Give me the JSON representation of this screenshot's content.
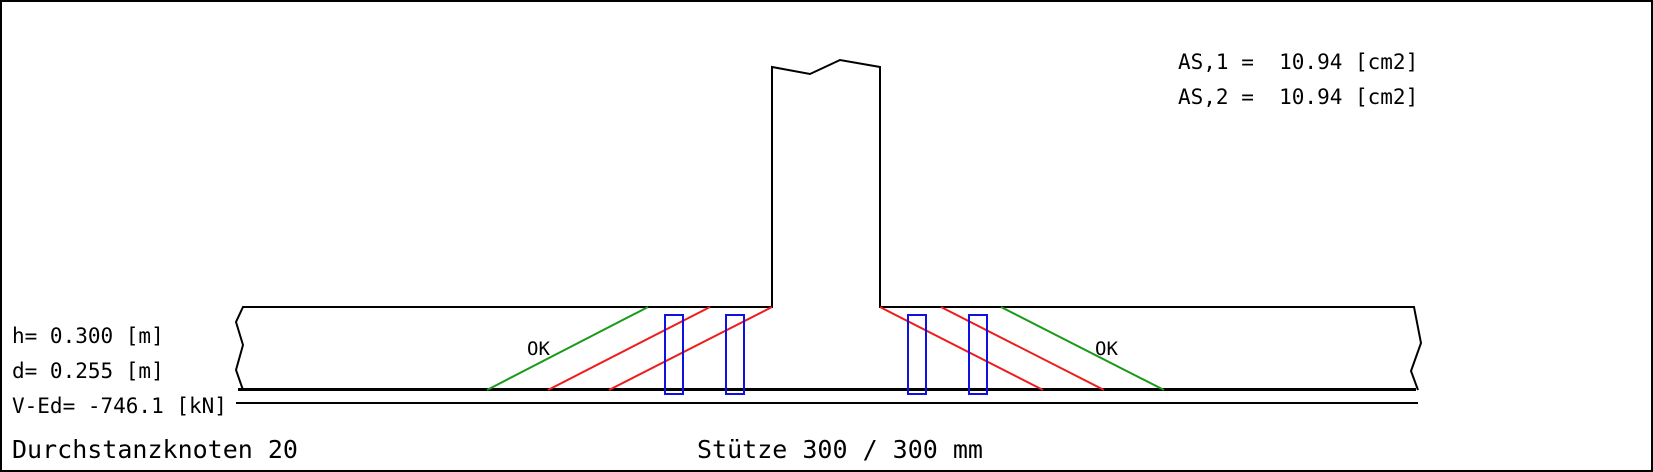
{
  "title": "Durchstanzknoten 20",
  "column_label": "Stütze 300 / 300 mm",
  "parameters": {
    "h": "h= 0.300 [m]",
    "d": "d= 0.255 [m]",
    "ved": "V-Ed= -746.1 [kN]"
  },
  "reinforcement": {
    "as1": "AS,1 =  10.94 [cm2]",
    "as2": "AS,2 =  10.94 [cm2]"
  },
  "checks": {
    "left": "OK",
    "right": "OK"
  },
  "colors": {
    "outline": "#000000",
    "ok_line": "#1a9a1a",
    "failed_line": "#ee1c1c",
    "stirrup": "#1010e0"
  }
}
